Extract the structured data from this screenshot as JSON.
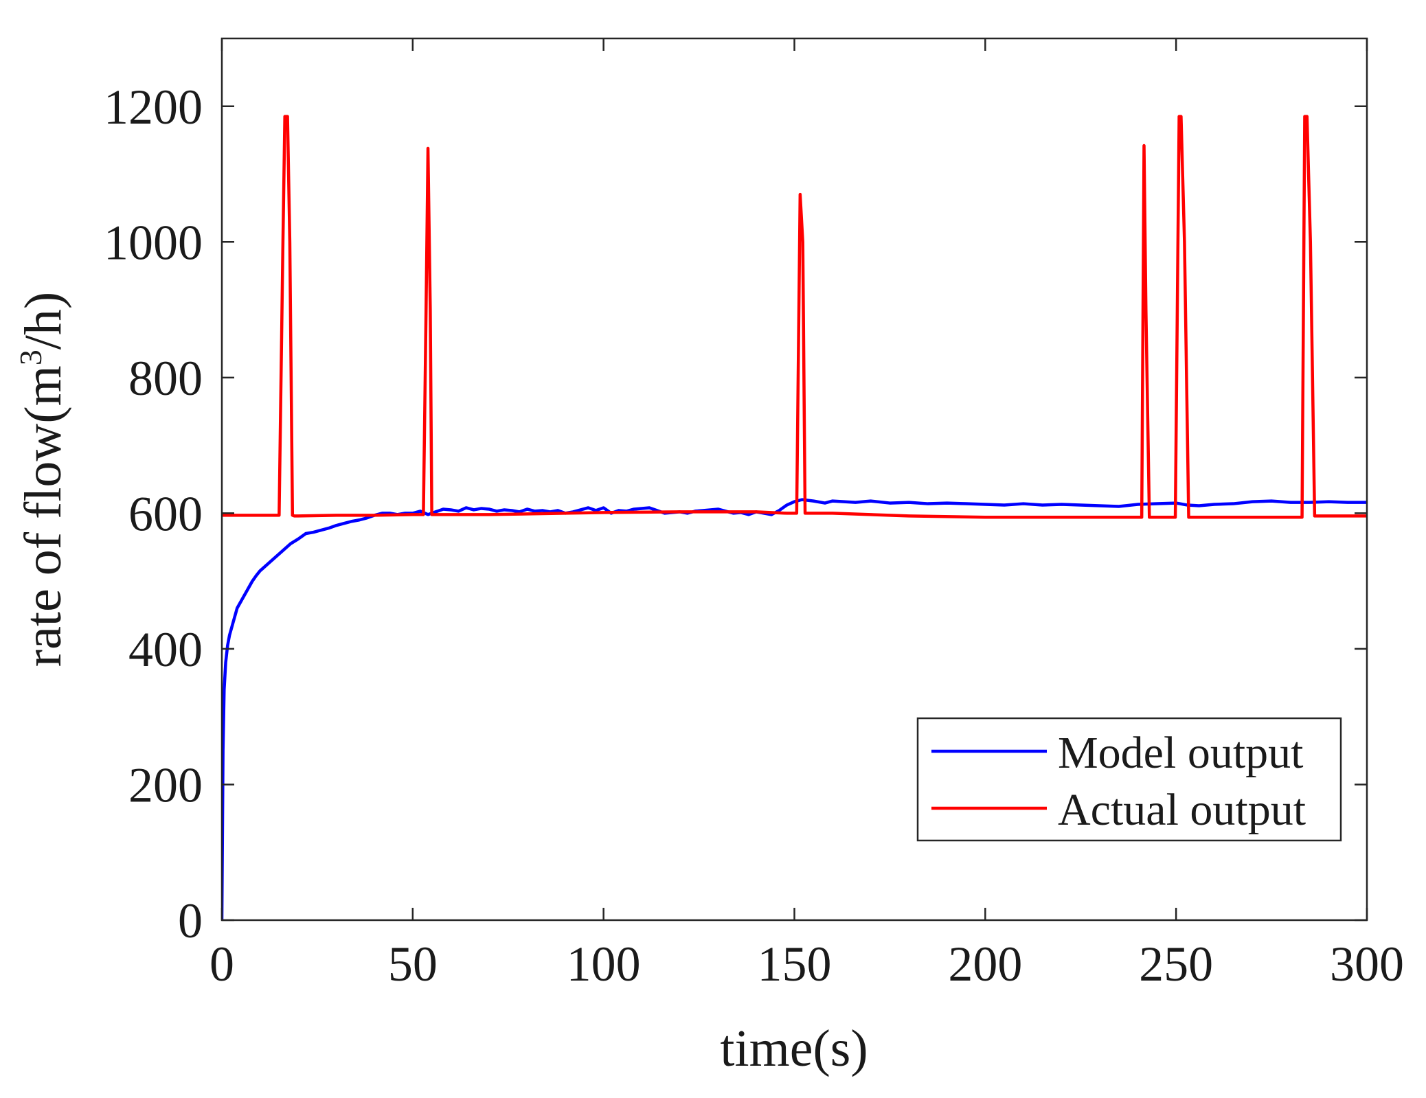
{
  "chart_data": {
    "type": "line",
    "title": "",
    "xlabel": "time(s)",
    "ylabel_parts": [
      "rate of flow(m",
      "3",
      "/h)"
    ],
    "xlim": [
      0,
      300
    ],
    "ylim": [
      0,
      1300
    ],
    "xticks": [
      0,
      50,
      100,
      150,
      200,
      250,
      300
    ],
    "yticks": [
      0,
      200,
      400,
      600,
      800,
      1000,
      1200
    ],
    "grid": false,
    "legend_position": "bottom-right",
    "series": [
      {
        "name": "Model output",
        "color": "#0000ff",
        "x": [
          0,
          0.3,
          0.6,
          1,
          1.5,
          2,
          3,
          4,
          5,
          6,
          7,
          8,
          9,
          10,
          12,
          14,
          16,
          18,
          20,
          22,
          24,
          26,
          28,
          30,
          32,
          34,
          36,
          38,
          40,
          42,
          44,
          46,
          48,
          50,
          52,
          54,
          56,
          58,
          60,
          62,
          64,
          66,
          68,
          70,
          72,
          74,
          76,
          78,
          80,
          82,
          84,
          86,
          88,
          90,
          92,
          94,
          96,
          98,
          100,
          102,
          104,
          106,
          108,
          110,
          112,
          114,
          116,
          118,
          120,
          122,
          124,
          126,
          128,
          130,
          132,
          134,
          136,
          138,
          140,
          142,
          144,
          146,
          148,
          150,
          152,
          155,
          158,
          160,
          163,
          166,
          170,
          175,
          180,
          185,
          190,
          195,
          200,
          205,
          210,
          215,
          220,
          225,
          230,
          235,
          240,
          245,
          250,
          253,
          256,
          260,
          265,
          270,
          275,
          280,
          285,
          290,
          295,
          300
        ],
        "values": [
          0,
          250,
          340,
          380,
          405,
          420,
          440,
          460,
          470,
          480,
          490,
          500,
          508,
          515,
          525,
          535,
          545,
          555,
          562,
          570,
          572,
          575,
          578,
          582,
          585,
          588,
          590,
          593,
          597,
          600,
          600,
          598,
          600,
          600,
          603,
          598,
          602,
          606,
          605,
          603,
          608,
          605,
          607,
          606,
          603,
          605,
          604,
          602,
          606,
          603,
          604,
          602,
          604,
          600,
          602,
          605,
          608,
          604,
          608,
          600,
          604,
          603,
          606,
          607,
          608,
          604,
          600,
          601,
          602,
          600,
          603,
          604,
          605,
          606,
          603,
          600,
          601,
          598,
          602,
          600,
          598,
          604,
          612,
          617,
          620,
          618,
          615,
          618,
          617,
          616,
          618,
          615,
          616,
          614,
          615,
          614,
          613,
          612,
          614,
          612,
          613,
          612,
          611,
          610,
          613,
          614,
          615,
          612,
          611,
          613,
          614,
          617,
          618,
          616,
          616,
          617,
          616,
          616
        ]
      },
      {
        "name": "Actual output",
        "color": "#ff0000",
        "x": [
          0,
          15,
          16,
          16.5,
          17.2,
          17.8,
          18.5,
          19,
          20,
          30,
          40,
          50,
          52.8,
          53.5,
          54,
          54.6,
          55,
          56,
          70,
          90,
          100,
          120,
          140,
          148,
          150.6,
          151.5,
          152.2,
          152.8,
          160,
          180,
          200,
          220,
          240,
          241,
          241.6,
          242.1,
          243,
          245,
          249.8,
          250.8,
          251.3,
          252.2,
          253.3,
          254,
          265,
          283,
          283.7,
          284.3,
          285.2,
          286.3,
          287,
          300
        ],
        "values": [
          597,
          597,
          1000,
          1185,
          1185,
          1000,
          597,
          596,
          596,
          597,
          597,
          598,
          598,
          900,
          1138,
          900,
          598,
          598,
          598,
          600,
          601,
          602,
          602,
          600,
          600,
          1070,
          1000,
          600,
          600,
          596,
          594,
          594,
          594,
          594,
          1142,
          900,
          594,
          594,
          594,
          1185,
          1185,
          1000,
          594,
          594,
          594,
          594,
          1185,
          1185,
          1000,
          596,
          596,
          596
        ]
      }
    ]
  }
}
